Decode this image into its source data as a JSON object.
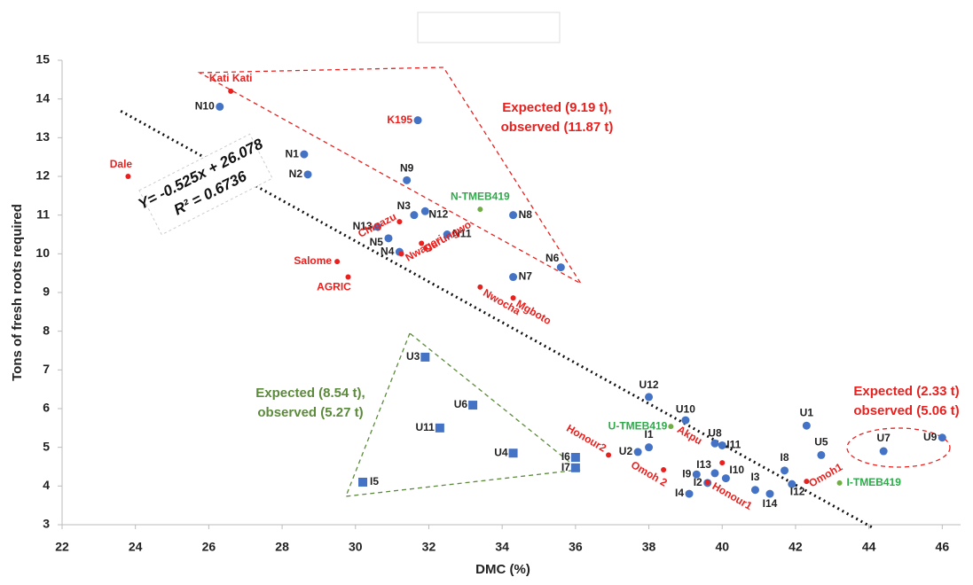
{
  "chart_data": {
    "type": "scatter",
    "x_label": "DMC (%)",
    "y_label": "Tons of fresh roots required",
    "xlim": [
      22,
      46.5
    ],
    "ylim": [
      3,
      15
    ],
    "xticks": [
      22,
      24,
      26,
      28,
      30,
      32,
      34,
      36,
      38,
      40,
      42,
      44,
      46
    ],
    "yticks": [
      3,
      4,
      5,
      6,
      7,
      8,
      9,
      10,
      11,
      12,
      13,
      14,
      15
    ],
    "series": [
      {
        "color": "#4472c4",
        "marker": "circle",
        "label_color": "#222222",
        "labels": [
          "N10",
          "N1",
          "N2",
          "N9",
          "N3",
          "N12",
          "N8",
          "N11",
          "N13",
          "N5",
          "N4",
          "N6",
          "N7",
          "U12",
          "U10",
          "U8",
          "I11",
          "U1",
          "U5",
          "U7",
          "U9",
          "U2",
          "I1",
          "I9",
          "I13",
          "I2",
          "I10",
          "I3",
          "I4",
          "I14",
          "I8",
          "I12"
        ],
        "x": [
          26.3,
          28.6,
          28.7,
          31.4,
          31.6,
          31.9,
          34.3,
          32.5,
          30.6,
          30.9,
          31.2,
          35.6,
          34.3,
          38.0,
          39.0,
          39.8,
          40.0,
          42.3,
          42.7,
          44.4,
          46.0,
          37.7,
          38.0,
          39.3,
          39.8,
          39.6,
          40.1,
          40.9,
          39.1,
          41.3,
          41.7,
          41.9
        ],
        "values": [
          13.8,
          12.57,
          12.05,
          11.9,
          11.0,
          11.1,
          11.0,
          10.5,
          10.7,
          10.4,
          10.05,
          9.65,
          9.4,
          6.3,
          5.7,
          5.1,
          5.05,
          5.56,
          4.8,
          4.9,
          5.25,
          4.88,
          5.0,
          4.3,
          4.33,
          4.08,
          4.2,
          3.9,
          3.8,
          3.8,
          4.4,
          4.05
        ]
      },
      {
        "color": "#e8201e",
        "marker": "dot",
        "label_color": "#e8201e",
        "labels": [
          "Kati Kati",
          "Dale",
          "Chigazu",
          "Nwageri",
          "Durungwo",
          "Salome",
          "AGRIC",
          "Nwocha",
          "Mgboto",
          "Honour2",
          "Omoh 2",
          "Honour1",
          "Akpu",
          "Omoh1"
        ],
        "x": [
          26.6,
          23.8,
          31.2,
          31.25,
          31.8,
          29.5,
          29.8,
          33.4,
          34.3,
          36.9,
          38.4,
          39.6,
          40.0,
          42.3
        ],
        "values": [
          14.2,
          12.0,
          10.83,
          10.0,
          10.27,
          9.8,
          9.4,
          9.14,
          8.86,
          4.8,
          4.42,
          4.1,
          4.6,
          4.12
        ]
      },
      {
        "color": "#70ad47",
        "marker": "dot",
        "label_color": "#2eaa4a",
        "labels": [
          "N-TMEB419",
          "U-TMEB419",
          "I-TMEB419"
        ],
        "x": [
          33.4,
          38.6,
          43.2
        ],
        "values": [
          11.15,
          5.54,
          4.08
        ]
      },
      {
        "color": "#4472c4",
        "marker": "square",
        "label_color": "#222222",
        "labels": [
          "U3",
          "U6",
          "U11",
          "U4",
          "I6",
          "I7",
          "I5"
        ],
        "x": [
          31.9,
          33.2,
          32.3,
          34.3,
          36.0,
          36.0,
          30.2
        ],
        "values": [
          7.33,
          6.09,
          5.5,
          4.85,
          4.74,
          4.47,
          4.1
        ]
      },
      {
        "color": "#4472c4",
        "marker": "circle",
        "label_color": "#e8201e",
        "labels": [
          "K195"
        ],
        "x": [
          31.7
        ],
        "values": [
          13.45
        ]
      }
    ],
    "trendline": {
      "slope": -0.525,
      "intercept": 26.078,
      "xlim": [
        23.6,
        44.1
      ],
      "label": "Y= -0.525x + 26.078",
      "r2_label": "R² = 0.6736"
    },
    "annotations": [
      {
        "lines": [
          "Expected (9.19 t),",
          "observed (11.87 t)"
        ],
        "color": "#e8201e"
      },
      {
        "lines": [
          "Expected (8.54 t),",
          "observed (5.27 t)"
        ],
        "color": "#5b8a3a"
      },
      {
        "lines": [
          "Expected (2.33 t)",
          "observed (5.06 t)"
        ],
        "color": "#e8201e"
      }
    ]
  }
}
